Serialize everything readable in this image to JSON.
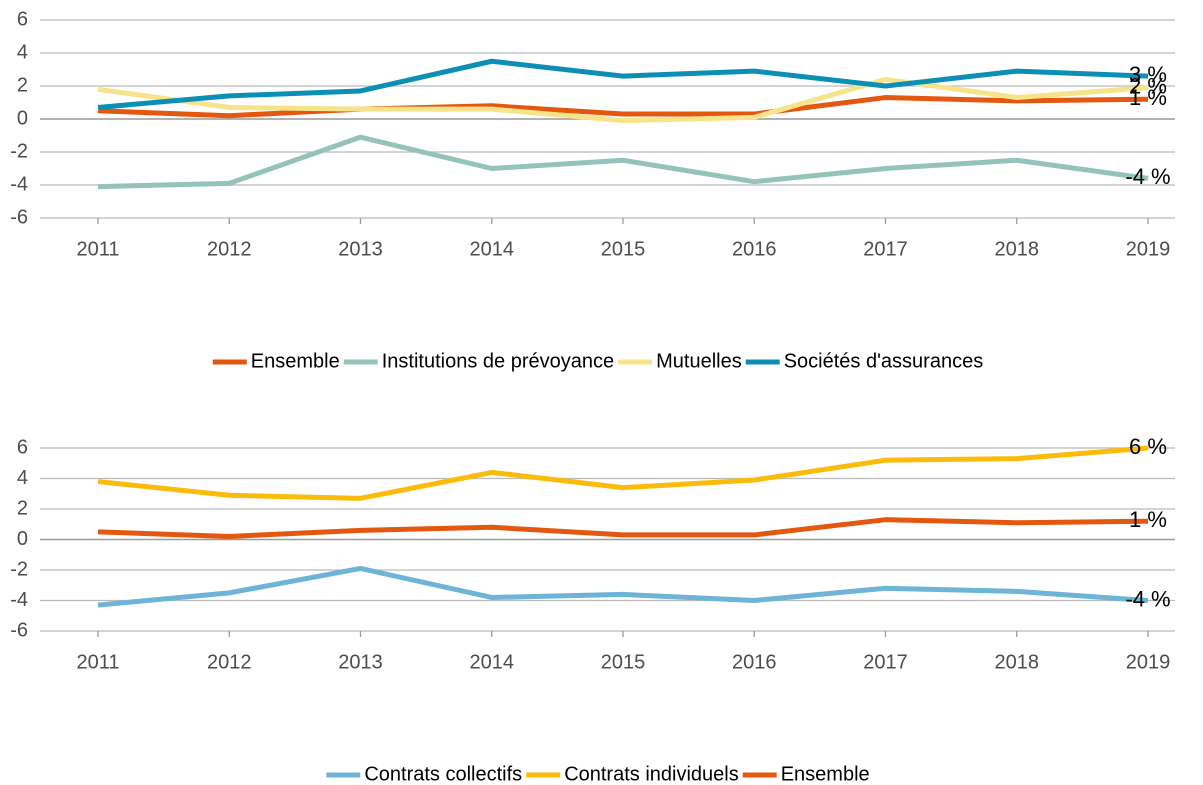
{
  "chart_data": [
    {
      "type": "line",
      "categories": [
        "2011",
        "2012",
        "2013",
        "2014",
        "2015",
        "2016",
        "2017",
        "2018",
        "2019"
      ],
      "ylim": [
        -6,
        6
      ],
      "yticks": [
        -6,
        -4,
        -2,
        0,
        2,
        4,
        6
      ],
      "grid": true,
      "legend": "bottom",
      "series": [
        {
          "name": "Ensemble",
          "color": "#e4570f",
          "values": [
            0.5,
            0.2,
            0.6,
            0.8,
            0.3,
            0.3,
            1.3,
            1.1,
            1.2
          ],
          "value_labels": [
            null,
            null,
            null,
            null,
            null,
            null,
            null,
            null,
            "1 %"
          ]
        },
        {
          "name": "Institutions de prévoyance",
          "color": "#94c4b9",
          "values": [
            -4.1,
            -3.9,
            -1.1,
            -3.0,
            -2.5,
            -3.8,
            -3.0,
            -2.5,
            -3.6
          ],
          "value_labels": [
            null,
            null,
            null,
            null,
            null,
            null,
            null,
            null,
            "-4 %"
          ]
        },
        {
          "name": "Mutuelles",
          "color": "#f7e48a",
          "values": [
            1.8,
            0.7,
            0.6,
            0.6,
            -0.1,
            0.1,
            2.4,
            1.3,
            1.9
          ],
          "value_labels": [
            null,
            null,
            null,
            null,
            null,
            null,
            null,
            null,
            "2 %"
          ]
        },
        {
          "name": "Sociétés d'assurances",
          "color": "#0b8fb5",
          "values": [
            0.7,
            1.4,
            1.7,
            3.5,
            2.6,
            2.9,
            2.0,
            2.9,
            2.6
          ],
          "value_labels": [
            null,
            null,
            null,
            null,
            null,
            null,
            null,
            null,
            "3 %"
          ]
        }
      ]
    },
    {
      "type": "line",
      "categories": [
        "2011",
        "2012",
        "2013",
        "2014",
        "2015",
        "2016",
        "2017",
        "2018",
        "2019"
      ],
      "ylim": [
        -6,
        6
      ],
      "yticks": [
        -6,
        -4,
        -2,
        0,
        2,
        4,
        6
      ],
      "grid": true,
      "legend": "bottom",
      "series": [
        {
          "name": "Contrats collectifs",
          "color": "#6db4d6",
          "values": [
            -4.3,
            -3.5,
            -1.9,
            -3.8,
            -3.6,
            -4.0,
            -3.2,
            -3.4,
            -4.0
          ],
          "value_labels": [
            null,
            null,
            null,
            null,
            null,
            null,
            null,
            null,
            "-4 %"
          ]
        },
        {
          "name": "Contrats individuels",
          "color": "#fbbb0a",
          "values": [
            3.8,
            2.9,
            2.7,
            4.4,
            3.4,
            3.9,
            5.2,
            5.3,
            6.0
          ],
          "value_labels": [
            null,
            null,
            null,
            null,
            null,
            null,
            null,
            null,
            "6 %"
          ]
        },
        {
          "name": "Ensemble",
          "color": "#e4570f",
          "values": [
            0.5,
            0.2,
            0.6,
            0.8,
            0.3,
            0.3,
            1.3,
            1.1,
            1.2
          ],
          "value_labels": [
            null,
            null,
            null,
            null,
            null,
            null,
            null,
            null,
            "1 %"
          ]
        }
      ]
    }
  ]
}
